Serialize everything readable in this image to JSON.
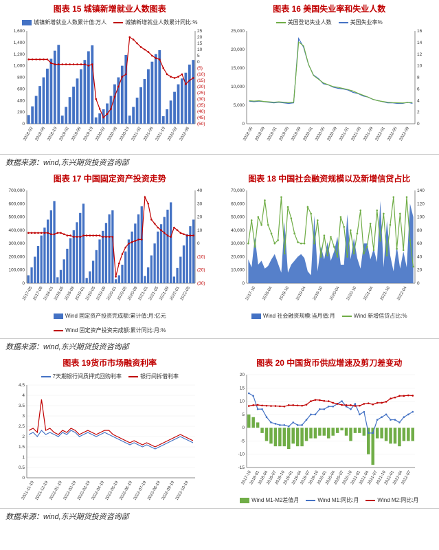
{
  "source_label": "数据来源：wind,东兴期货投资咨询部",
  "colors": {
    "title": "#c00000",
    "blue": "#4472c4",
    "red": "#c00000",
    "green": "#70ad47",
    "darkblue": "#2f5597",
    "grid": "#d0d0d0",
    "axis": "#888888"
  },
  "chart15": {
    "title": "图表 15 城镇新增就业人数图表",
    "legend_bar": "城镇新增就业人数累计值:万人",
    "legend_line": "城镇新增就业人数累计同比:%",
    "y1_min": 0,
    "y1_max": 1600,
    "y1_step": 200,
    "y2_min": -50,
    "y2_max": 25,
    "y2_step": 5,
    "xlabels": [
      "2018-02",
      "2018-06",
      "2018-10",
      "2019-02",
      "2019-06",
      "2019-10",
      "2020-02",
      "2020-06",
      "2020-10",
      "2021-02",
      "2021-06",
      "2021-10",
      "2022-02",
      "2022-06"
    ],
    "bars": [
      150,
      300,
      480,
      650,
      800,
      950,
      1120,
      1260,
      1360,
      140,
      290,
      460,
      640,
      780,
      940,
      1100,
      1250,
      1352,
      110,
      180,
      250,
      350,
      480,
      680,
      800,
      1000,
      1186,
      140,
      290,
      450,
      630,
      770,
      940,
      1070,
      1200,
      1269,
      130,
      250,
      400,
      550,
      680,
      780,
      880,
      1020,
      1100
    ],
    "line": [
      2,
      2,
      2,
      2,
      2,
      2,
      -1,
      -2,
      -2,
      -2,
      -2,
      -2,
      -2,
      -2,
      -2,
      -2,
      -3,
      -2,
      -30,
      -38,
      -45,
      -42,
      -38,
      -28,
      -20,
      -12,
      -10,
      20,
      18,
      15,
      12,
      10,
      8,
      5,
      3,
      2,
      -5,
      -10,
      -12,
      -13,
      -12,
      -10,
      -18,
      -15,
      -13
    ]
  },
  "chart16": {
    "title": "图表 16 美国失业率和失业人数",
    "legend_a": "美国登记失业人数",
    "legend_b": "美国失业率%",
    "y1_min": 0,
    "y1_max": 25000,
    "y1_step": 5000,
    "y2_min": 0,
    "y2_max": 16,
    "y2_step": 2,
    "xlabels": [
      "2018-05",
      "2018-09",
      "2019-01",
      "2019-05",
      "2019-09",
      "2020-01",
      "2020-05",
      "2020-09",
      "2021-01",
      "2021-05",
      "2021-09",
      "2022-01",
      "2022-05",
      "2022-09"
    ],
    "line1": [
      6200,
      6100,
      6200,
      6000,
      5900,
      5800,
      5900,
      5800,
      5700,
      5800,
      22000,
      21000,
      16000,
      13000,
      12000,
      11000,
      10500,
      10000,
      9800,
      9500,
      9200,
      8800,
      8200,
      7700,
      7200,
      6600,
      6200,
      6000,
      5800,
      5700,
      5650,
      5600,
      5700,
      5750
    ],
    "line2": [
      3.9,
      3.8,
      3.9,
      3.8,
      3.7,
      3.6,
      3.7,
      3.6,
      3.5,
      3.6,
      14.7,
      13.2,
      10.2,
      8.4,
      7.8,
      6.9,
      6.7,
      6.3,
      6.1,
      6.0,
      5.8,
      5.4,
      5.2,
      4.8,
      4.6,
      4.2,
      4.0,
      3.8,
      3.6,
      3.6,
      3.5,
      3.5,
      3.7,
      3.5
    ]
  },
  "chart17": {
    "title": "图表 17 中国固定资产投资走势",
    "legend_bar": "Wind 固定资产投资完成额:累计值:月:亿元",
    "legend_line": "Wind 固定资产投资完成额:累计同比:月:%",
    "y1_min": 0,
    "y1_max": 700000,
    "y1_step": 100000,
    "y2_min": -30,
    "y2_max": 40,
    "y2_step": 10,
    "xlabels": [
      "2017-05",
      "2017-09",
      "2018-01",
      "2018-05",
      "2018-09",
      "2019-01",
      "2019-05",
      "2019-09",
      "2020-01",
      "2020-05",
      "2020-09",
      "2021-01",
      "2021-05",
      "2021-09",
      "2022-01",
      "2022-05"
    ],
    "bars": [
      60000,
      120000,
      200000,
      280000,
      360000,
      420000,
      480000,
      550000,
      620000,
      45000,
      100000,
      180000,
      260000,
      340000,
      400000,
      460000,
      530000,
      600000,
      40000,
      90000,
      170000,
      250000,
      330000,
      395000,
      455000,
      520000,
      550000,
      30000,
      60000,
      140000,
      240000,
      330000,
      390000,
      450000,
      520000,
      580000,
      55000,
      120000,
      210000,
      300000,
      390000,
      445000,
      500000,
      555000,
      610000,
      50000,
      115000,
      200000,
      285000,
      370000,
      430000,
      480000
    ],
    "line": [
      8,
      8,
      8,
      8,
      8,
      8,
      8,
      7,
      7,
      8,
      8,
      7,
      6,
      6,
      5,
      5,
      5,
      6,
      6,
      6,
      6,
      6,
      6,
      5,
      5,
      5,
      5,
      -25,
      -15,
      -8,
      -3,
      0,
      1,
      2,
      3,
      3,
      35,
      30,
      18,
      15,
      12,
      10,
      8,
      6,
      5,
      12,
      10,
      8,
      7,
      6,
      6,
      6
    ]
  },
  "chart18": {
    "title": "图表 18 中国社会融资规模以及新增信贷占比",
    "legend_area": "Wind 社会融资规模:当月值:月",
    "legend_line": "Wind 新增信贷占比:%",
    "y1_min": 0,
    "y1_max": 70000,
    "y1_step": 10000,
    "y2_min": 0,
    "y2_max": 140,
    "y2_step": 20,
    "xlabels": [
      "2017-10",
      "2018-04",
      "2018-10",
      "2019-04",
      "2019-10",
      "2020-04",
      "2020-10",
      "2021-04",
      "2021-10",
      "2022-04"
    ],
    "area": [
      18000,
      12000,
      35000,
      14000,
      17000,
      11000,
      13000,
      18000,
      22000,
      15000,
      8000,
      46000,
      8000,
      14000,
      17000,
      20000,
      22000,
      19000,
      9000,
      6000,
      51000,
      9000,
      28000,
      18000,
      31000,
      17000,
      24000,
      35000,
      14000,
      14000,
      52000,
      18000,
      34000,
      19000,
      11000,
      30000,
      30000,
      18000,
      26000,
      16000,
      62000,
      12000,
      47000,
      21000,
      9000,
      28000,
      11000,
      24000,
      12000,
      60000,
      50000
    ],
    "line": [
      60,
      95,
      55,
      100,
      88,
      125,
      88,
      75,
      60,
      65,
      130,
      45,
      115,
      98,
      75,
      62,
      60,
      60,
      115,
      105,
      60,
      95,
      40,
      72,
      42,
      70,
      55,
      40,
      100,
      85,
      40,
      80,
      45,
      75,
      110,
      45,
      55,
      90,
      50,
      110,
      64,
      105,
      42,
      88,
      130,
      52,
      105,
      50,
      130,
      65,
      25
    ]
  },
  "chart19": {
    "title": "图表 19货币市场融资利率",
    "legend_a": "7天期银行间质押式回购利率",
    "legend_b": "银行间拆借利率",
    "y1_min": 0,
    "y1_max": 4.5,
    "y1_step": 0.5,
    "xlabels": [
      "2021-11-19",
      "2021-12-19",
      "2022-01-19",
      "2022-02-19",
      "2022-03-19",
      "2022-04-19",
      "2022-05-19",
      "2022-06-19",
      "2022-07-19",
      "2022-08-19",
      "2022-09-19",
      "2022-10-19"
    ],
    "line1": [
      2.1,
      2.2,
      2.0,
      2.3,
      2.1,
      2.2,
      2.1,
      2.0,
      2.2,
      2.1,
      2.3,
      2.2,
      2.0,
      2.1,
      2.2,
      2.1,
      2.0,
      2.1,
      2.2,
      2.1,
      2.0,
      1.9,
      1.8,
      1.7,
      1.6,
      1.7,
      1.6,
      1.5,
      1.6,
      1.5,
      1.4,
      1.5,
      1.6,
      1.7,
      1.8,
      1.9,
      2.0,
      1.9,
      1.8,
      1.7
    ],
    "line2": [
      2.3,
      2.4,
      2.2,
      3.8,
      2.3,
      2.4,
      2.2,
      2.1,
      2.3,
      2.2,
      2.4,
      2.3,
      2.1,
      2.2,
      2.3,
      2.2,
      2.1,
      2.2,
      2.3,
      2.3,
      2.1,
      2.0,
      1.9,
      1.8,
      1.7,
      1.8,
      1.7,
      1.6,
      1.7,
      1.6,
      1.5,
      1.6,
      1.7,
      1.8,
      1.9,
      2.0,
      2.1,
      2.0,
      1.9,
      1.8
    ]
  },
  "chart20": {
    "title": "图表 20 中国货币供应增速及剪刀差变动",
    "legend_bar": "Wind M1-M2差值月",
    "legend_a": "Wind M1:同比:月",
    "legend_b": "Wind M2:同比:月",
    "y1_min": -15,
    "y1_max": 20,
    "y1_step": 5,
    "xlabels": [
      "2017-10",
      "2018-01",
      "2018-04",
      "2018-07",
      "2018-10",
      "2019-01",
      "2019-04",
      "2019-07",
      "2019-10",
      "2020-01",
      "2020-04",
      "2020-07",
      "2020-10",
      "2021-01",
      "2021-04",
      "2021-07",
      "2021-10",
      "2022-01",
      "2022-04",
      "2022-07"
    ],
    "bars": [
      5,
      4,
      2,
      -2,
      -5,
      -6,
      -7,
      -7,
      -7,
      -8,
      -6,
      -7,
      -7,
      -5,
      -4,
      -4,
      -3,
      -3,
      -4,
      -3,
      -2,
      -1,
      -3,
      -5,
      -2,
      -2,
      -3,
      -10,
      -14,
      -4,
      -4,
      -5,
      -6,
      -6,
      -7,
      -5,
      -5,
      -5
    ],
    "line1": [
      13,
      12,
      7,
      7,
      4,
      2,
      1.5,
      1,
      1,
      0.5,
      2,
      1,
      1,
      3,
      5,
      5,
      7,
      7,
      8,
      8,
      9,
      10,
      8,
      7,
      9,
      5,
      6,
      -2,
      -2,
      3,
      4,
      5,
      3,
      3,
      2,
      4,
      5,
      6
    ],
    "line2": [
      8.2,
      8.5,
      8.6,
      8.4,
      8.3,
      8.2,
      8.2,
      8.1,
      8.0,
      8.5,
      8.5,
      8.4,
      8.3,
      8.7,
      10,
      10.5,
      10.4,
      10.1,
      10,
      9.4,
      9,
      8.6,
      8.5,
      8.5,
      8.2,
      8.3,
      9,
      9.2,
      8.8,
      9.4,
      9.4,
      9.8,
      11,
      11.4,
      12,
      12,
      12.2,
      12.1
    ]
  }
}
